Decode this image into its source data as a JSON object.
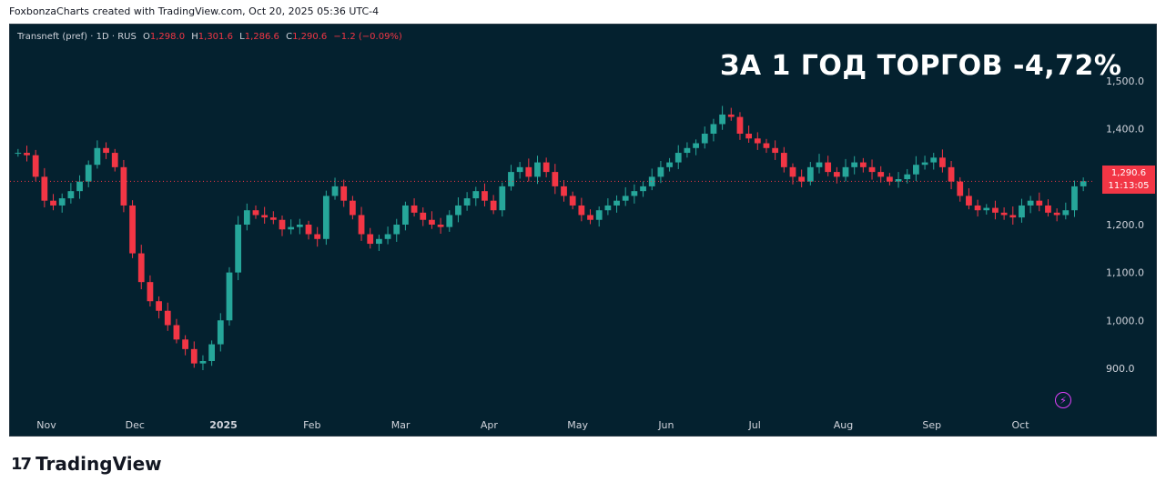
{
  "caption": "FoxbonzaCharts created with TradingView.com, Oct 20, 2025 05:36 UTC-4",
  "legend": {
    "symbol": "Transneft (pref) · 1D · RUS",
    "o_label": "O",
    "o_value": "1,298.0",
    "h_label": "H",
    "h_value": "1,301.6",
    "l_label": "L",
    "l_value": "1,286.6",
    "c_label": "C",
    "c_value": "1,290.6",
    "change": "−1.2 (−0.09%)"
  },
  "headline": "ЗА 1 ГОД ТОРГОВ -4,72%",
  "last_price": {
    "price": "1,290.6",
    "countdown": "11:13:05"
  },
  "brand": {
    "logo": "17",
    "name": "TradingView"
  },
  "colors": {
    "up": "#26a69a",
    "down": "#f23645",
    "background": "#04212f"
  },
  "chart_data": {
    "type": "candlestick",
    "y_ticks": [
      "1,500.0",
      "1,400.0",
      "1,300.0",
      "1,200.0",
      "1,100.0",
      "1,000.0",
      "900.0"
    ],
    "ylim": [
      820,
      1580
    ],
    "x_labels": [
      "Nov",
      "Dec",
      "2025",
      "Feb",
      "Mar",
      "Apr",
      "May",
      "Jun",
      "Jul",
      "Aug",
      "Sep",
      "Oct"
    ],
    "last_close": 1290.6,
    "closes": [
      1350,
      1345,
      1300,
      1250,
      1240,
      1255,
      1270,
      1290,
      1325,
      1360,
      1350,
      1320,
      1240,
      1140,
      1080,
      1040,
      1020,
      990,
      960,
      940,
      910,
      915,
      950,
      1000,
      1100,
      1200,
      1230,
      1220,
      1215,
      1210,
      1190,
      1195,
      1200,
      1180,
      1170,
      1260,
      1280,
      1250,
      1220,
      1180,
      1160,
      1170,
      1180,
      1200,
      1240,
      1225,
      1210,
      1200,
      1195,
      1220,
      1240,
      1255,
      1270,
      1250,
      1230,
      1280,
      1310,
      1320,
      1300,
      1330,
      1310,
      1280,
      1260,
      1240,
      1220,
      1210,
      1230,
      1240,
      1250,
      1260,
      1270,
      1280,
      1300,
      1320,
      1330,
      1350,
      1360,
      1370,
      1390,
      1410,
      1430,
      1425,
      1390,
      1380,
      1370,
      1360,
      1350,
      1320,
      1300,
      1290,
      1320,
      1330,
      1310,
      1300,
      1320,
      1330,
      1320,
      1310,
      1300,
      1290,
      1295,
      1305,
      1325,
      1330,
      1340,
      1320,
      1290,
      1260,
      1240,
      1230,
      1235,
      1225,
      1220,
      1215,
      1240,
      1250,
      1240,
      1225,
      1220,
      1230,
      1280,
      1290.6
    ]
  }
}
